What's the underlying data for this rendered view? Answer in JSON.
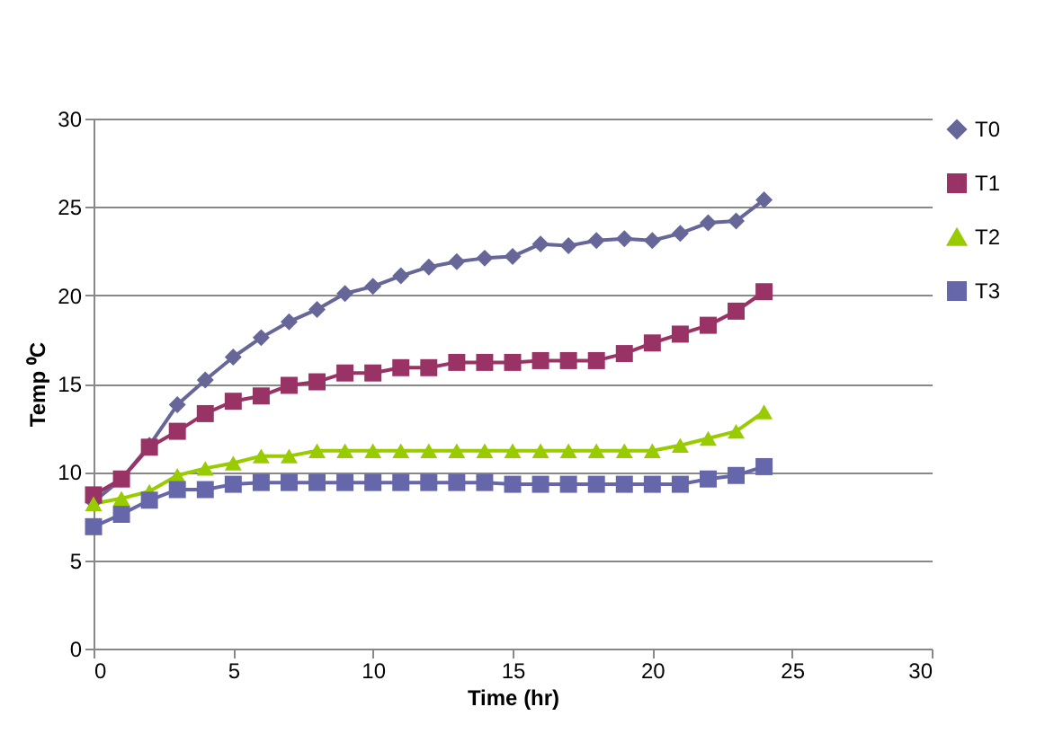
{
  "chart_data": {
    "type": "line",
    "xlabel": "Time (hr)",
    "ylabel": "Temp ⁰C",
    "x": [
      0,
      1,
      2,
      3,
      4,
      5,
      6,
      7,
      8,
      9,
      10,
      11,
      12,
      13,
      14,
      15,
      16,
      17,
      18,
      19,
      20,
      21,
      22,
      23,
      24
    ],
    "series": [
      {
        "name": "T0",
        "color": "#666699",
        "marker": "diamond",
        "values": [
          8.3,
          9.6,
          11.5,
          13.8,
          15.2,
          16.5,
          17.6,
          18.5,
          19.2,
          20.1,
          20.5,
          21.1,
          21.6,
          21.9,
          22.1,
          22.2,
          22.9,
          22.8,
          23.1,
          23.2,
          23.1,
          23.5,
          24.1,
          24.2,
          25.4
        ]
      },
      {
        "name": "T1",
        "color": "#993366",
        "marker": "square",
        "values": [
          8.7,
          9.6,
          11.4,
          12.3,
          13.3,
          14.0,
          14.3,
          14.9,
          15.1,
          15.6,
          15.6,
          15.9,
          15.9,
          16.2,
          16.2,
          16.2,
          16.3,
          16.3,
          16.3,
          16.7,
          17.3,
          17.8,
          18.3,
          19.1,
          20.2
        ]
      },
      {
        "name": "T2",
        "color": "#99cc00",
        "marker": "triangle",
        "values": [
          8.2,
          8.5,
          8.9,
          9.8,
          10.2,
          10.5,
          10.9,
          10.9,
          11.2,
          11.2,
          11.2,
          11.2,
          11.2,
          11.2,
          11.2,
          11.2,
          11.2,
          11.2,
          11.2,
          11.2,
          11.2,
          11.5,
          11.9,
          12.3,
          13.4
        ]
      },
      {
        "name": "T3",
        "color": "#6666aa",
        "marker": "square",
        "values": [
          6.9,
          7.6,
          8.4,
          9.0,
          9.0,
          9.3,
          9.4,
          9.4,
          9.4,
          9.4,
          9.4,
          9.4,
          9.4,
          9.4,
          9.4,
          9.3,
          9.3,
          9.3,
          9.3,
          9.3,
          9.3,
          9.3,
          9.6,
          9.8,
          10.3
        ]
      }
    ],
    "xlim": [
      0,
      30
    ],
    "xticks": [
      0,
      5,
      10,
      15,
      20,
      25,
      30
    ],
    "ylim": [
      0,
      30
    ],
    "yticks": [
      0,
      5,
      10,
      15,
      20,
      25,
      30
    ],
    "grid": "y",
    "legend": "right",
    "line_style": "solid"
  }
}
